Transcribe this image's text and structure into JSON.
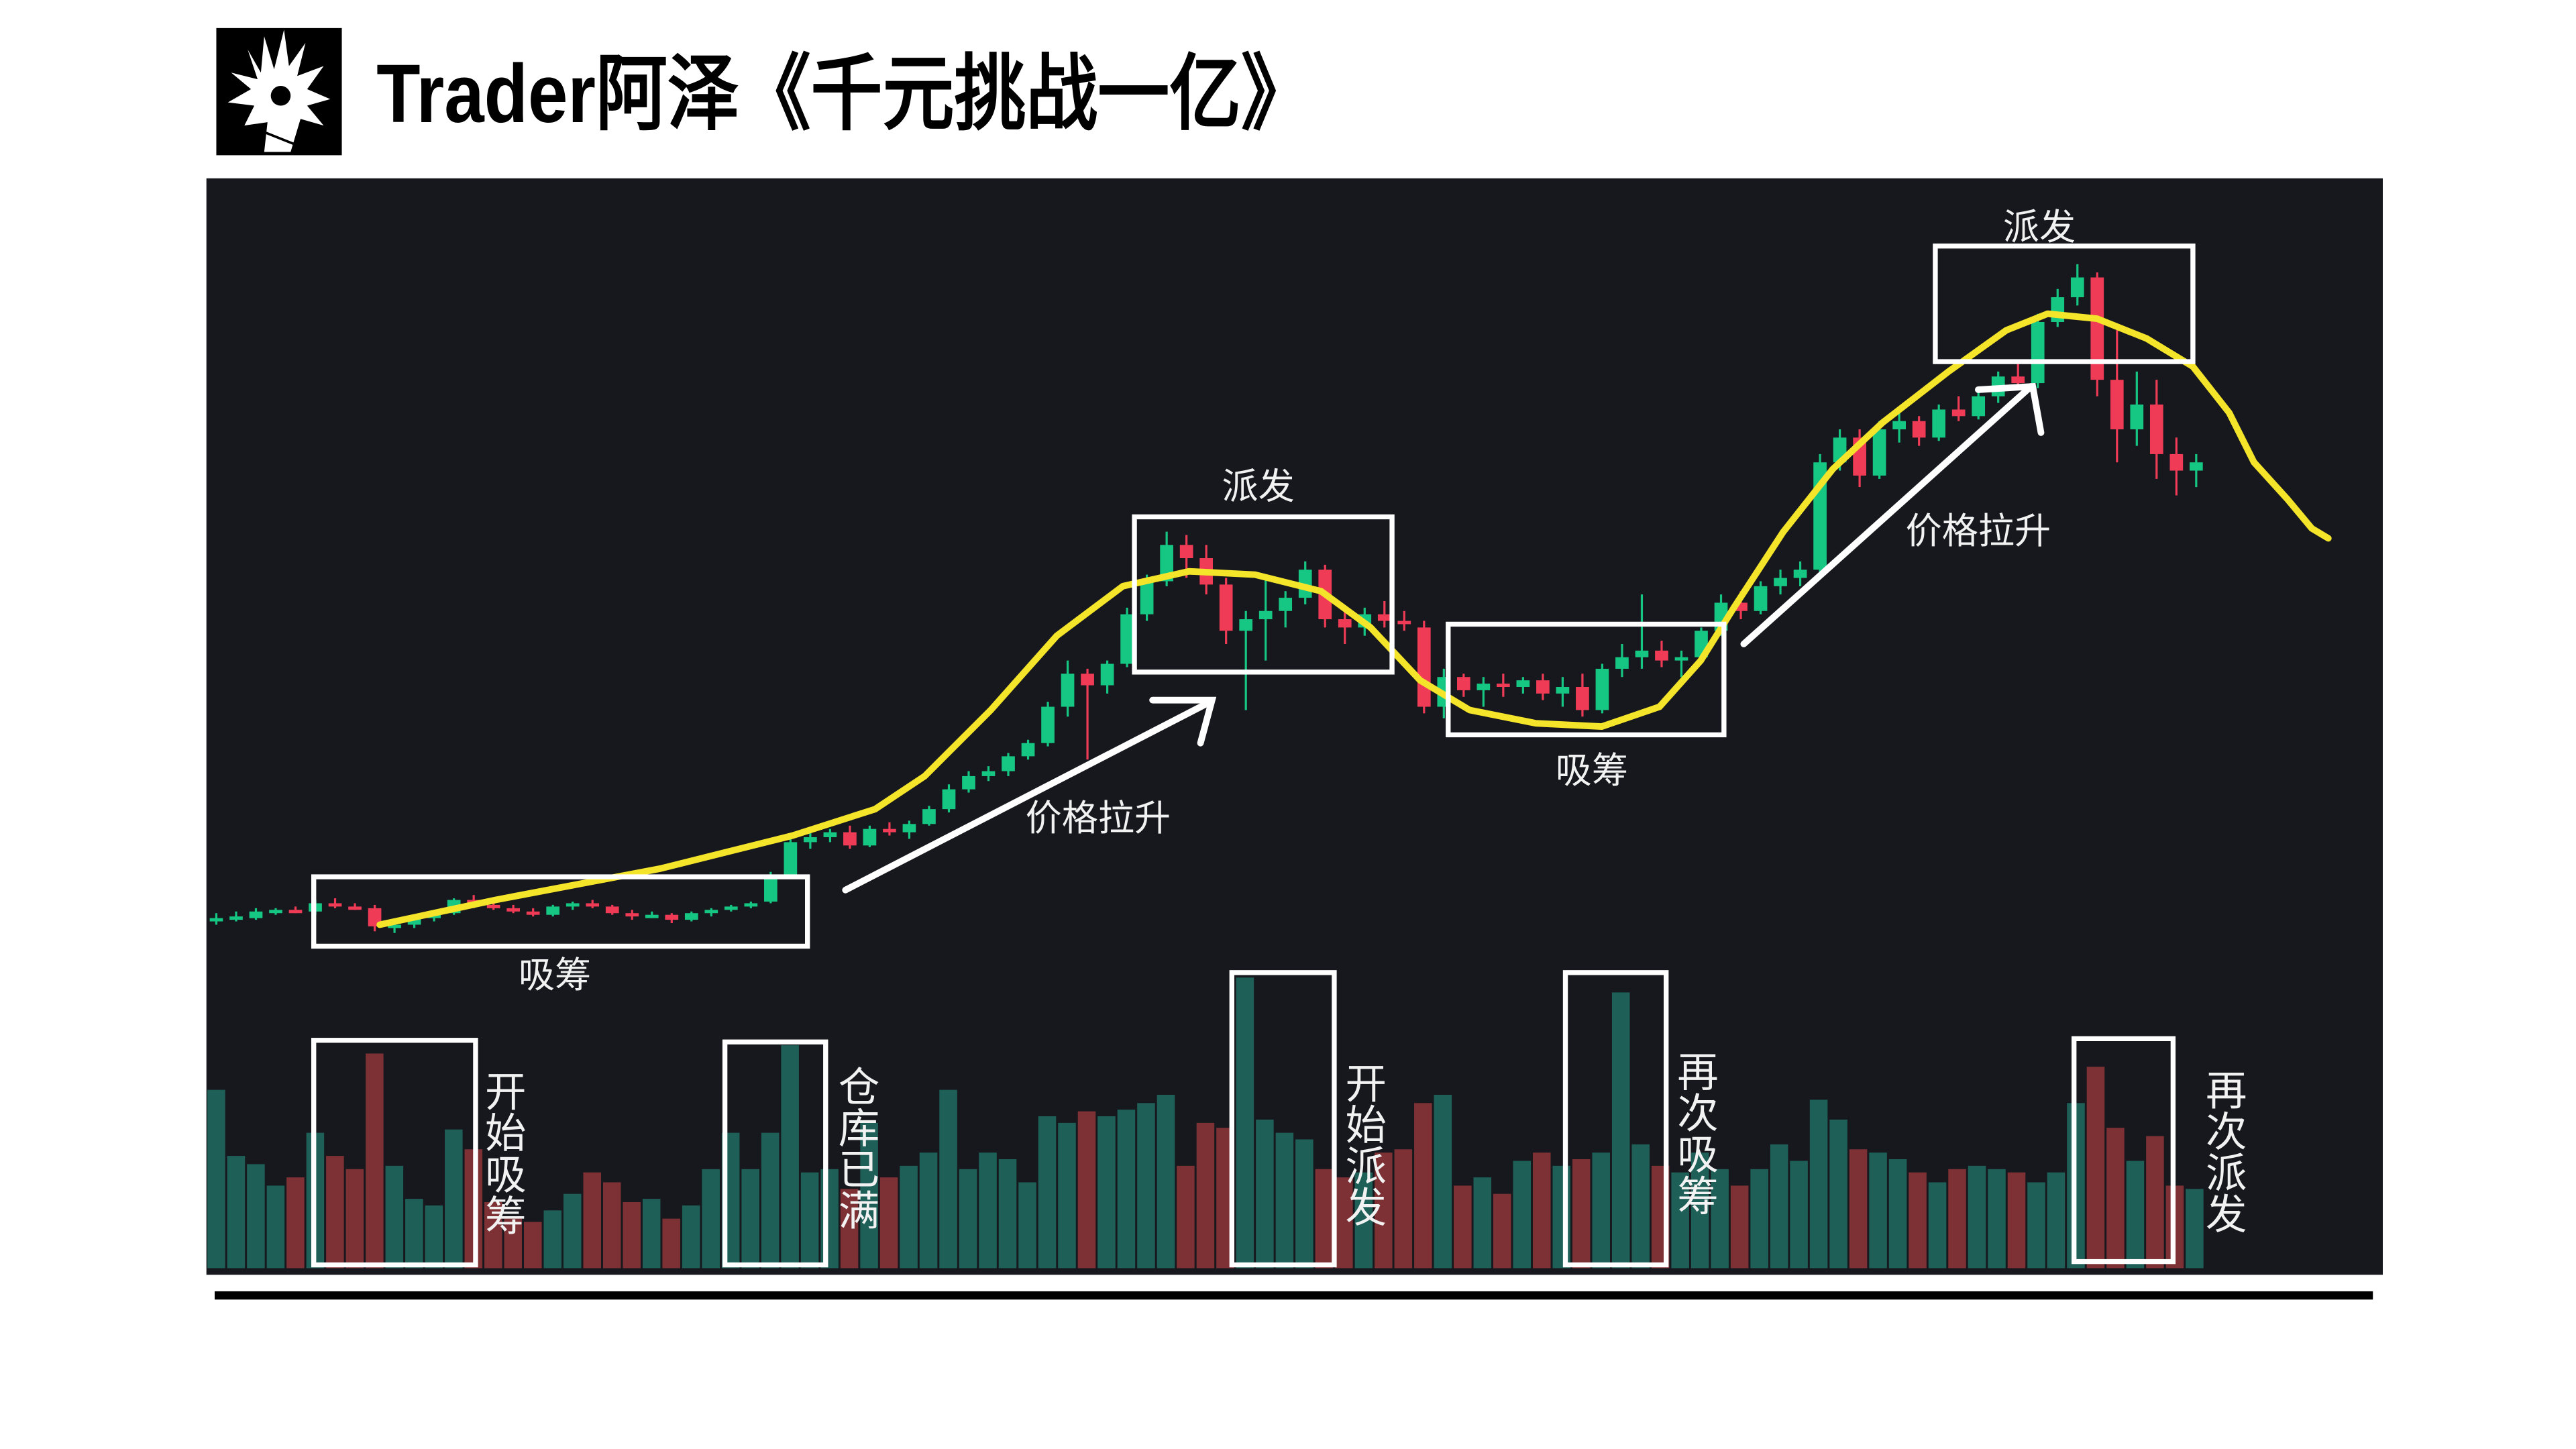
{
  "header": {
    "title": "Trader阿泽《千元挑战一亿》",
    "logo_icon": "spiky-hair-avatar-logo"
  },
  "colors": {
    "background": "#16181d",
    "candle_up": "#16c784",
    "candle_down": "#ef3b56",
    "volume_up": "#1e5f58",
    "volume_down": "#7d3134",
    "trend_curve": "#f5e52a",
    "annotation": "#ffffff"
  },
  "annotations": {
    "accumulate_1": "吸筹",
    "markup_1": "价格拉升",
    "distribute_1": "派发",
    "accumulate_2": "吸筹",
    "markup_2": "价格拉升",
    "distribute_2": "派发",
    "vol_1": "开始吸筹",
    "vol_2": "仓库已满",
    "vol_3": "开始派发",
    "vol_4": "再次吸筹",
    "vol_5": "再次派发"
  },
  "chart_data": {
    "type": "candlestick",
    "title": "",
    "grid": false,
    "legend": "none",
    "candles_ohlc": [
      [
        242,
        247,
        240,
        244
      ],
      [
        244,
        248,
        242,
        245
      ],
      [
        244,
        250,
        243,
        248
      ],
      [
        248,
        250,
        246,
        249
      ],
      [
        249,
        251,
        247,
        248
      ],
      [
        248,
        255,
        246,
        253
      ],
      [
        253,
        256,
        250,
        251
      ],
      [
        251,
        253,
        249,
        250
      ],
      [
        250,
        252,
        236,
        239
      ],
      [
        239,
        241,
        235,
        240
      ],
      [
        240,
        245,
        238,
        244
      ],
      [
        244,
        248,
        242,
        247
      ],
      [
        247,
        256,
        246,
        255
      ],
      [
        255,
        258,
        250,
        252
      ],
      [
        252,
        254,
        249,
        250
      ],
      [
        250,
        252,
        247,
        248
      ],
      [
        248,
        250,
        245,
        246
      ],
      [
        246,
        252,
        245,
        251
      ],
      [
        251,
        254,
        249,
        253
      ],
      [
        253,
        255,
        250,
        251
      ],
      [
        251,
        252,
        246,
        247
      ],
      [
        247,
        249,
        243,
        245
      ],
      [
        245,
        248,
        244,
        246
      ],
      [
        246,
        247,
        241,
        243
      ],
      [
        243,
        248,
        242,
        247
      ],
      [
        247,
        250,
        245,
        249
      ],
      [
        249,
        252,
        248,
        251
      ],
      [
        251,
        254,
        250,
        253
      ],
      [
        254,
        272,
        253,
        270
      ],
      [
        270,
        292,
        268,
        290
      ],
      [
        290,
        297,
        286,
        293
      ],
      [
        293,
        298,
        290,
        296
      ],
      [
        296,
        300,
        286,
        288
      ],
      [
        288,
        300,
        287,
        298
      ],
      [
        298,
        302,
        294,
        296
      ],
      [
        296,
        303,
        292,
        301
      ],
      [
        301,
        312,
        300,
        310
      ],
      [
        310,
        325,
        308,
        322
      ],
      [
        322,
        333,
        320,
        330
      ],
      [
        330,
        336,
        327,
        333
      ],
      [
        333,
        344,
        330,
        342
      ],
      [
        342,
        352,
        340,
        350
      ],
      [
        350,
        375,
        348,
        372
      ],
      [
        372,
        400,
        366,
        392
      ],
      [
        392,
        395,
        340,
        385
      ],
      [
        385,
        400,
        380,
        398
      ],
      [
        398,
        432,
        396,
        428
      ],
      [
        428,
        452,
        424,
        448
      ],
      [
        448,
        478,
        445,
        470
      ],
      [
        470,
        476,
        450,
        462
      ],
      [
        462,
        470,
        440,
        446
      ],
      [
        446,
        450,
        410,
        418
      ],
      [
        418,
        430,
        370,
        425
      ],
      [
        425,
        450,
        400,
        430
      ],
      [
        430,
        442,
        420,
        438
      ],
      [
        438,
        460,
        434,
        455
      ],
      [
        455,
        458,
        420,
        425
      ],
      [
        425,
        430,
        410,
        420
      ],
      [
        420,
        432,
        415,
        428
      ],
      [
        428,
        436,
        420,
        424
      ],
      [
        424,
        430,
        418,
        422
      ],
      [
        420,
        424,
        368,
        372
      ],
      [
        372,
        395,
        365,
        390
      ],
      [
        390,
        392,
        378,
        382
      ],
      [
        382,
        390,
        372,
        386
      ],
      [
        386,
        392,
        378,
        384
      ],
      [
        384,
        390,
        380,
        388
      ],
      [
        388,
        392,
        376,
        380
      ],
      [
        380,
        390,
        372,
        384
      ],
      [
        384,
        392,
        366,
        370
      ],
      [
        370,
        398,
        368,
        395
      ],
      [
        395,
        410,
        390,
        402
      ],
      [
        402,
        440,
        395,
        406
      ],
      [
        406,
        412,
        396,
        400
      ],
      [
        400,
        406,
        390,
        402
      ],
      [
        402,
        420,
        400,
        418
      ],
      [
        418,
        440,
        415,
        435
      ],
      [
        435,
        442,
        425,
        430
      ],
      [
        430,
        448,
        428,
        445
      ],
      [
        445,
        455,
        440,
        450
      ],
      [
        450,
        460,
        445,
        455
      ],
      [
        455,
        525,
        450,
        520
      ],
      [
        520,
        540,
        515,
        535
      ],
      [
        535,
        540,
        505,
        512
      ],
      [
        512,
        545,
        510,
        540
      ],
      [
        540,
        552,
        532,
        545
      ],
      [
        545,
        548,
        530,
        535
      ],
      [
        535,
        555,
        533,
        552
      ],
      [
        552,
        560,
        545,
        548
      ],
      [
        548,
        565,
        546,
        560
      ],
      [
        560,
        575,
        556,
        572
      ],
      [
        572,
        580,
        565,
        568
      ],
      [
        568,
        610,
        565,
        605
      ],
      [
        605,
        625,
        602,
        620
      ],
      [
        620,
        640,
        615,
        632
      ],
      [
        632,
        635,
        560,
        570
      ],
      [
        570,
        600,
        520,
        540
      ],
      [
        540,
        575,
        530,
        555
      ],
      [
        555,
        570,
        510,
        525
      ],
      [
        525,
        535,
        500,
        515
      ],
      [
        515,
        525,
        505,
        520
      ]
    ],
    "volumes": [
      108,
      68,
      63,
      50,
      55,
      82,
      68,
      60,
      130,
      62,
      42,
      38,
      84,
      72,
      40,
      30,
      28,
      35,
      45,
      58,
      52,
      40,
      42,
      30,
      38,
      60,
      82,
      60,
      82,
      135,
      58,
      60,
      48,
      88,
      55,
      62,
      70,
      108,
      60,
      70,
      66,
      52,
      92,
      88,
      95,
      92,
      96,
      100,
      105,
      62,
      88,
      85,
      176,
      90,
      82,
      78,
      60,
      55,
      58,
      70,
      72,
      100,
      105,
      50,
      55,
      45,
      65,
      70,
      62,
      66,
      70,
      167,
      75,
      62,
      58,
      70,
      60,
      50,
      60,
      75,
      65,
      102,
      90,
      72,
      70,
      66,
      58,
      52,
      60,
      62,
      60,
      58,
      52,
      58,
      100,
      122,
      85,
      65,
      80,
      50,
      48
    ]
  }
}
